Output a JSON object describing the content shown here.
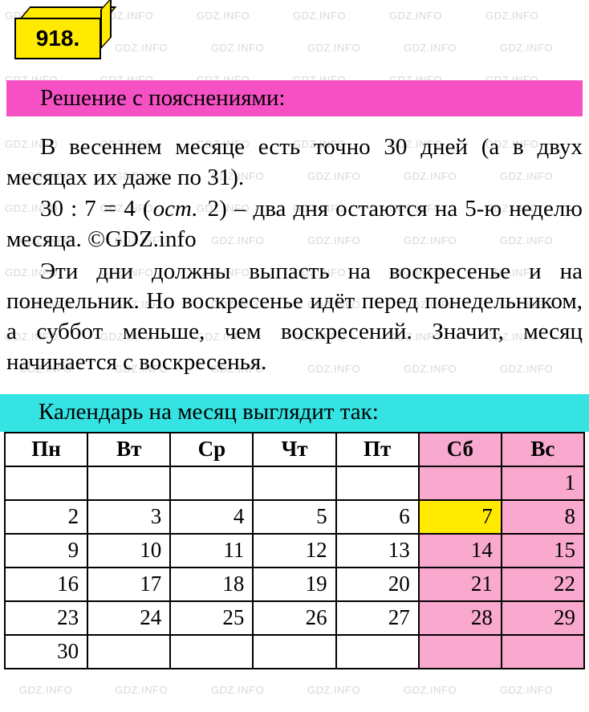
{
  "watermark_text": "GDZ.INFO",
  "watermark_color": "#d8d8d8",
  "exercise_number": "918.",
  "colors": {
    "box_yellow": "#ffea00",
    "header_pink": "#f550c4",
    "header_cyan": "#36e3e3",
    "weekend_pink": "#f9a8ce",
    "highlight_yellow": "#ffea00",
    "border": "#000000",
    "background": "#ffffff"
  },
  "solution_header": "Решение с пояснениями:",
  "body": {
    "p1": "В весеннем месяце есть точно 30 дней (а в двух месяцах их даже по 31).",
    "math_line_prefix": "30 : 7 = 4 (",
    "math_italic": "ост.",
    "math_line_mid": " 2) ",
    "math_line_suffix": "– два дня остаются на 5-ю неделю месяца. ©GDZ.info",
    "p3": "Эти дни должны выпасть на воскре­сенье и на понедельник. Но воскресенье идёт перед понедельником, а суббот меньше, чем воскресений. Значит, месяц начинается с воскресенья."
  },
  "calendar_header": "Календарь на месяц выглядит так:",
  "calendar": {
    "type": "table",
    "columns": [
      "Пн",
      "Вт",
      "Ср",
      "Чт",
      "Пт",
      "Сб",
      "Вс"
    ],
    "weekend_cols": [
      5,
      6
    ],
    "rows": [
      [
        "",
        "",
        "",
        "",
        "",
        "",
        "1"
      ],
      [
        "2",
        "3",
        "4",
        "5",
        "6",
        "7",
        "8"
      ],
      [
        "9",
        "10",
        "11",
        "12",
        "13",
        "14",
        "15"
      ],
      [
        "16",
        "17",
        "18",
        "19",
        "20",
        "21",
        "22"
      ],
      [
        "23",
        "24",
        "25",
        "26",
        "27",
        "28",
        "29"
      ],
      [
        "30",
        "",
        "",
        "",
        "",
        "",
        ""
      ]
    ],
    "highlighted_cell": {
      "row": 1,
      "col": 5
    },
    "border_color": "#000000",
    "cell_font_size": 27,
    "header_font_weight": "bold"
  }
}
